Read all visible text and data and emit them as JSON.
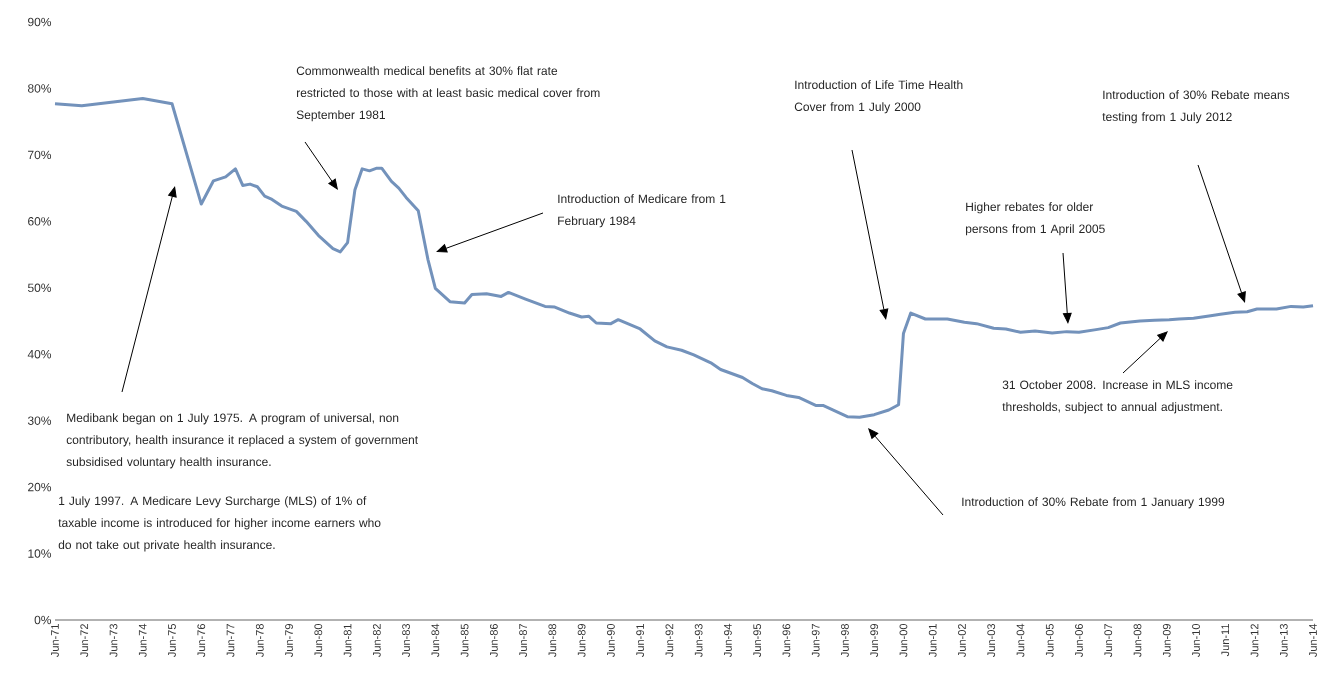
{
  "chart_data": {
    "type": "line",
    "x": [
      "1971-06",
      "1972-05",
      "1974-06",
      "1975-06",
      "1976-06",
      "1976-11",
      "1977-04",
      "1977-08",
      "1977-11",
      "1978-02",
      "1978-05",
      "1978-08",
      "1978-11",
      "1979-03",
      "1979-09",
      "1980-01",
      "1980-06",
      "1980-12",
      "1981-03",
      "1981-06",
      "1981-09",
      "1981-12",
      "1982-03",
      "1982-06",
      "1982-08",
      "1982-12",
      "1983-03",
      "1983-06",
      "1983-11",
      "1984-03",
      "1984-06",
      "1984-12",
      "1985-06",
      "1985-09",
      "1986-03",
      "1986-09",
      "1986-12",
      "1987-07",
      "1988-03",
      "1988-07",
      "1989-01",
      "1989-06",
      "1989-09",
      "1989-12",
      "1990-06",
      "1990-09",
      "1991-06",
      "1991-12",
      "1992-05",
      "1992-11",
      "1993-04",
      "1993-11",
      "1994-03",
      "1994-12",
      "1995-04",
      "1995-08",
      "1995-12",
      "1996-06",
      "1996-11",
      "1997-06",
      "1997-09",
      "1998-07",
      "1998-12",
      "1999-06",
      "1999-12",
      "2000-04",
      "2000-06",
      "2000-09",
      "2001-03",
      "2001-12",
      "2002-07",
      "2002-12",
      "2003-07",
      "2003-12",
      "2004-06",
      "2004-12",
      "2005-07",
      "2006-01",
      "2006-06",
      "2007-01",
      "2007-06",
      "2007-11",
      "2008-07",
      "2009-01",
      "2009-07",
      "2009-11",
      "2010-05",
      "2010-12",
      "2011-04",
      "2011-10",
      "2012-03",
      "2012-07",
      "2013-03",
      "2013-09",
      "2014-02",
      "2014-06"
    ],
    "series": [
      {
        "color": "#7392bb",
        "values": [
          77.7,
          77.4,
          78.5,
          77.7,
          62.6,
          66.1,
          66.7,
          67.9,
          65.4,
          65.6,
          65.2,
          63.8,
          63.3,
          62.3,
          61.5,
          60.0,
          57.9,
          55.9,
          55.4,
          56.8,
          64.7,
          67.9,
          67.6,
          68.0,
          68.0,
          66.0,
          65.0,
          63.6,
          61.6,
          54.2,
          49.9,
          47.9,
          47.7,
          49.0,
          49.1,
          48.7,
          49.3,
          48.3,
          47.2,
          47.1,
          46.2,
          45.6,
          45.7,
          44.7,
          44.6,
          45.2,
          43.8,
          42.0,
          41.1,
          40.6,
          39.9,
          38.7,
          37.7,
          36.5,
          35.6,
          34.8,
          34.5,
          33.8,
          33.5,
          32.3,
          32.3,
          30.6,
          30.5,
          30.9,
          31.6,
          32.4,
          43.1,
          46.2,
          45.3,
          45.3,
          44.8,
          44.6,
          43.9,
          43.8,
          43.3,
          43.5,
          43.2,
          43.4,
          43.3,
          43.7,
          44.0,
          44.7,
          45.0,
          45.1,
          45.2,
          45.3,
          45.4,
          45.8,
          46.0,
          46.3,
          46.4,
          46.8,
          46.8,
          47.2,
          47.1,
          47.3
        ]
      }
    ],
    "xlim": [
      "1971-06",
      "2014-06"
    ],
    "xticks": [
      {
        "value": "1971-06",
        "label": "Jun-71"
      },
      {
        "value": "1972-06",
        "label": "Jun-72"
      },
      {
        "value": "1973-06",
        "label": "Jun-73"
      },
      {
        "value": "1974-06",
        "label": "Jun-74"
      },
      {
        "value": "1975-06",
        "label": "Jun-75"
      },
      {
        "value": "1976-06",
        "label": "Jun-76"
      },
      {
        "value": "1977-06",
        "label": "Jun-77"
      },
      {
        "value": "1978-06",
        "label": "Jun-78"
      },
      {
        "value": "1979-06",
        "label": "Jun-79"
      },
      {
        "value": "1980-06",
        "label": "Jun-80"
      },
      {
        "value": "1981-06",
        "label": "Jun-81"
      },
      {
        "value": "1982-06",
        "label": "Jun-82"
      },
      {
        "value": "1983-06",
        "label": "Jun-83"
      },
      {
        "value": "1984-06",
        "label": "Jun-84"
      },
      {
        "value": "1985-06",
        "label": "Jun-85"
      },
      {
        "value": "1986-06",
        "label": "Jun-86"
      },
      {
        "value": "1987-06",
        "label": "Jun-87"
      },
      {
        "value": "1988-06",
        "label": "Jun-88"
      },
      {
        "value": "1989-06",
        "label": "Jun-89"
      },
      {
        "value": "1990-06",
        "label": "Jun-90"
      },
      {
        "value": "1991-06",
        "label": "Jun-91"
      },
      {
        "value": "1992-06",
        "label": "Jun-92"
      },
      {
        "value": "1993-06",
        "label": "Jun-93"
      },
      {
        "value": "1994-06",
        "label": "Jun-94"
      },
      {
        "value": "1995-06",
        "label": "Jun-95"
      },
      {
        "value": "1996-06",
        "label": "Jun-96"
      },
      {
        "value": "1997-06",
        "label": "Jun-97"
      },
      {
        "value": "1998-06",
        "label": "Jun-98"
      },
      {
        "value": "1999-06",
        "label": "Jun-99"
      },
      {
        "value": "2000-06",
        "label": "Jun-00"
      },
      {
        "value": "2001-06",
        "label": "Jun-01"
      },
      {
        "value": "2002-06",
        "label": "Jun-02"
      },
      {
        "value": "2003-06",
        "label": "Jun-03"
      },
      {
        "value": "2004-06",
        "label": "Jun-04"
      },
      {
        "value": "2005-06",
        "label": "Jun-05"
      },
      {
        "value": "2006-06",
        "label": "Jun-06"
      },
      {
        "value": "2007-06",
        "label": "Jun-07"
      },
      {
        "value": "2008-06",
        "label": "Jun-08"
      },
      {
        "value": "2009-06",
        "label": "Jun-09"
      },
      {
        "value": "2010-06",
        "label": "Jun-10"
      },
      {
        "value": "2011-06",
        "label": "Jun-11"
      },
      {
        "value": "2012-06",
        "label": "Jun-12"
      },
      {
        "value": "2013-06",
        "label": "Jun-13"
      },
      {
        "value": "2014-06",
        "label": "Jun-14"
      }
    ],
    "ylim": [
      0,
      90
    ],
    "yticks": [
      {
        "value": 0,
        "label": "0%"
      },
      {
        "value": 10,
        "label": "10%"
      },
      {
        "value": 20,
        "label": "20%"
      },
      {
        "value": 30,
        "label": "30%"
      },
      {
        "value": 40,
        "label": "40%"
      },
      {
        "value": 50,
        "label": "50%"
      },
      {
        "value": 60,
        "label": "60%"
      },
      {
        "value": 70,
        "label": "70%"
      },
      {
        "value": 80,
        "label": "80%"
      },
      {
        "value": 90,
        "label": "90%"
      }
    ],
    "grid": false,
    "marker": "none",
    "line_style": "solid",
    "annotations": [
      "Medibank began on 1 July 1975.  A program of universal, non contributory, health insurance it replaced a system of government subsidised voluntary health insurance.",
      "Commonwealth medical benefits at 30% flat rate restricted to those with at least basic medical cover from September 1981",
      "Introduction of Medicare from 1 February 1984",
      "Introduction of Life Time Health Cover from 1 July 2000",
      "Higher rebates for older persons from 1 April 2005",
      "Introduction of 30% Rebate means testing from 1 July 2012",
      "31 October 2008. Increase in MLS income thresholds, subject to annual adjustment.",
      "Introduction of 30% Rebate from 1 January 1999",
      "1 July 1997. A Medicare Levy Surcharge (MLS) of 1% of taxable income is introduced for higher income earners who do not take out private health insurance."
    ]
  }
}
